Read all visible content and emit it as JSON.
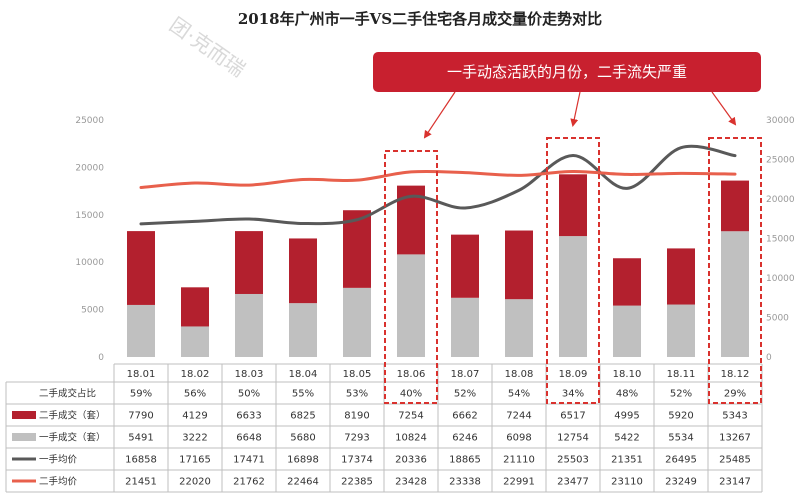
{
  "chart_data": {
    "type": "bar",
    "title": "2018年广州市一手VS二手住宅各月成交量价走势对比",
    "annotation": "一手动态活跃的月份，二手流失严重",
    "watermark": "团·克而瑞",
    "categories": [
      "18.01",
      "18.02",
      "18.03",
      "18.04",
      "18.05",
      "18.06",
      "18.07",
      "18.08",
      "18.09",
      "18.10",
      "18.11",
      "18.12"
    ],
    "left_ylim": [
      0,
      25000
    ],
    "left_ticks": [
      "25000",
      "20000",
      "15000",
      "10000",
      "5000",
      "0"
    ],
    "right_ylim": [
      0,
      30000
    ],
    "right_ticks": [
      "30000",
      "25000",
      "20000",
      "15000",
      "10000",
      "5000",
      "0"
    ],
    "highlighted": [
      "18.06",
      "18.09",
      "18.12"
    ],
    "colors": {
      "first_hand_bar": "#c0c0c0",
      "second_hand_bar": "#b3202e",
      "first_hand_price_line": "#595959",
      "second_hand_price_line": "#e8604c",
      "banner": "#c8202f",
      "highlight_box": "#d9322e"
    },
    "rows": [
      {
        "label": "二手成交占比",
        "marker": "none",
        "values": [
          "59%",
          "56%",
          "50%",
          "55%",
          "53%",
          "40%",
          "52%",
          "54%",
          "34%",
          "48%",
          "52%",
          "29%"
        ]
      },
      {
        "label": "二手成交（套）",
        "marker": "red-box",
        "values": [
          "7790",
          "4129",
          "6633",
          "6825",
          "8190",
          "7254",
          "6662",
          "7244",
          "6517",
          "4995",
          "5920",
          "5343"
        ]
      },
      {
        "label": "一手成交（套）",
        "marker": "gray-box",
        "values": [
          "5491",
          "3222",
          "6648",
          "5680",
          "7293",
          "10824",
          "6246",
          "6098",
          "12754",
          "5422",
          "5534",
          "13267"
        ]
      },
      {
        "label": "一手均价",
        "marker": "dark-line",
        "values": [
          "16858",
          "17165",
          "17471",
          "16898",
          "17374",
          "20336",
          "18865",
          "21110",
          "25503",
          "21351",
          "26495",
          "25485"
        ]
      },
      {
        "label": "二手均价",
        "marker": "red-line",
        "values": [
          "21451",
          "22020",
          "21762",
          "22464",
          "22385",
          "23428",
          "23338",
          "22991",
          "23477",
          "23110",
          "23249",
          "23147"
        ]
      }
    ],
    "series": [
      {
        "name": "一手成交（套）",
        "type": "bar",
        "axis": "left",
        "values": [
          5491,
          3222,
          6648,
          5680,
          7293,
          10824,
          6246,
          6098,
          12754,
          5422,
          5534,
          13267
        ]
      },
      {
        "name": "二手成交（套）",
        "type": "bar",
        "axis": "left",
        "values": [
          7790,
          4129,
          6633,
          6825,
          8190,
          7254,
          6662,
          7244,
          6517,
          4995,
          5920,
          5343
        ]
      },
      {
        "name": "一手均价",
        "type": "line",
        "axis": "right",
        "values": [
          16858,
          17165,
          17471,
          16898,
          17374,
          20336,
          18865,
          21110,
          25503,
          21351,
          26495,
          25485
        ]
      },
      {
        "name": "二手均价",
        "type": "line",
        "axis": "right",
        "values": [
          21451,
          22020,
          21762,
          22464,
          22385,
          23428,
          23338,
          22991,
          23477,
          23110,
          23249,
          23147
        ]
      }
    ]
  }
}
